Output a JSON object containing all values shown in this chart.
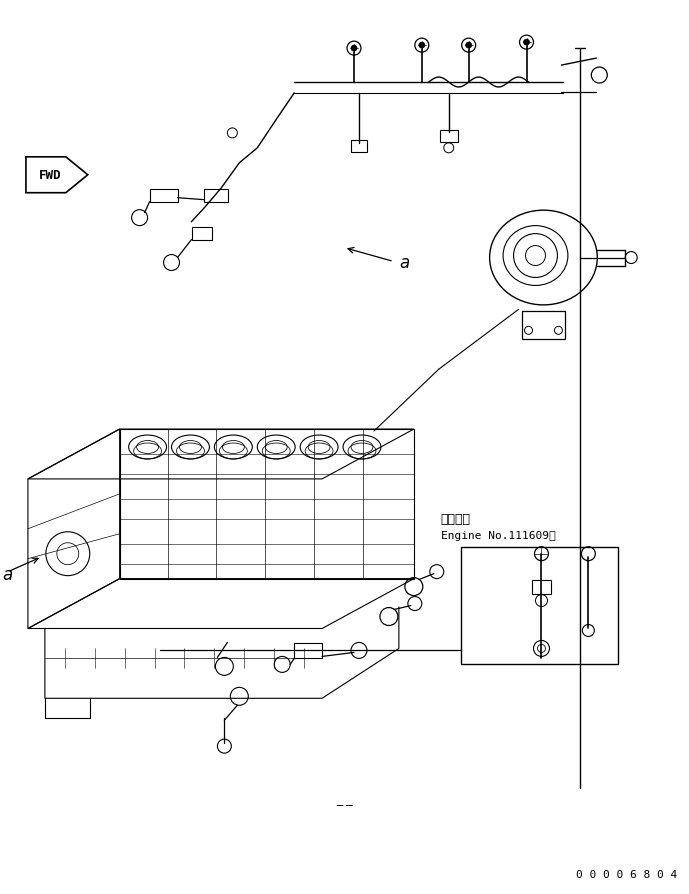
{
  "bg_color": "#ffffff",
  "line_color": "#000000",
  "fig_width": 6.89,
  "fig_height": 8.95,
  "dpi": 100,
  "part_number": "0 0 0 0 6 8 0 4",
  "fwd_label": "FWD",
  "applicability_text_line1": "適用号機",
  "applicability_text_line2": "Engine No.111609～",
  "engine_block_color": "#000000",
  "turbo_color": "#000000"
}
